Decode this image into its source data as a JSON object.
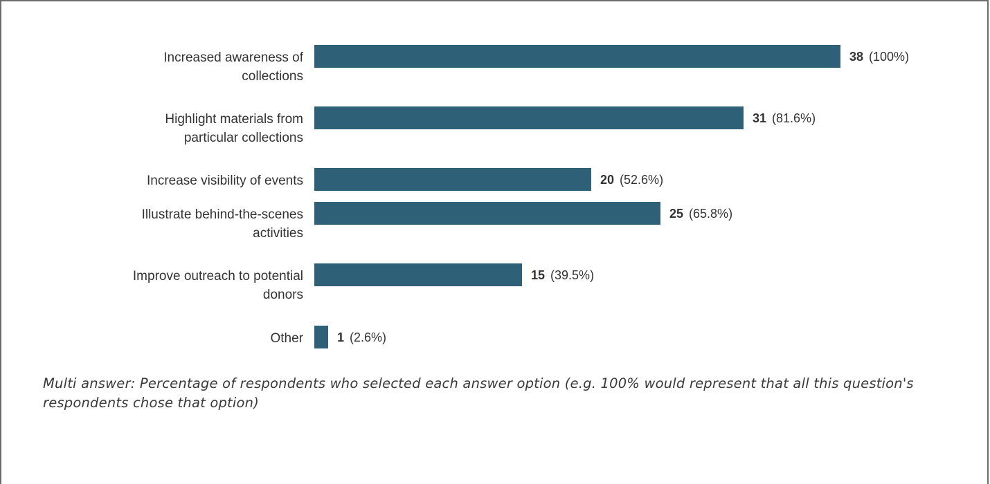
{
  "chart_data": {
    "type": "bar",
    "orientation": "horizontal",
    "categories": [
      [
        "Increased awareness of",
        "collections"
      ],
      [
        "Highlight materials from",
        "particular collections"
      ],
      [
        "Increase visibility of events"
      ],
      [
        "Illustrate behind-the-scenes",
        "activities"
      ],
      [
        "Improve outreach to potential",
        "donors"
      ],
      [
        "Other"
      ]
    ],
    "values": [
      38,
      31,
      20,
      25,
      15,
      1
    ],
    "percent_labels": [
      "(100%)",
      "(81.6%)",
      "(52.6%)",
      "(65.8%)",
      "(39.5%)",
      "(2.6%)"
    ],
    "xlim": [
      0,
      38
    ],
    "grid": false,
    "bar_color": "#2e6177"
  },
  "footnote": "Multi answer: Percentage of respondents who selected each answer option (e.g. 100% would represent that all this question's respondents chose that option)"
}
